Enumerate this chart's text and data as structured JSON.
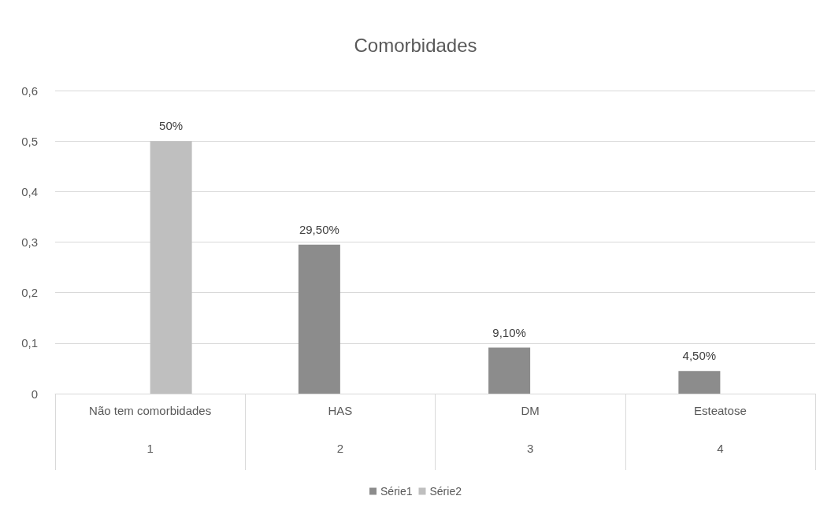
{
  "chart_data": {
    "type": "bar",
    "title": "Comorbidades",
    "categories": [
      "Não tem comorbidades",
      "HAS",
      "DM",
      "Esteatose"
    ],
    "series": [
      {
        "name": "Série1",
        "color": "#8c8c8c",
        "values": [
          null,
          0.295,
          0.091,
          0.045
        ],
        "value_labels": [
          null,
          "29,50%",
          "9,10%",
          "4,50%"
        ]
      },
      {
        "name": "Série2",
        "color": "#bfbfbf",
        "values": [
          0.5,
          null,
          null,
          null
        ],
        "value_labels": [
          "50%",
          null,
          null,
          null
        ]
      }
    ],
    "annotations": [
      "1",
      "2",
      "3",
      "4"
    ],
    "ylim": [
      0,
      0.6
    ],
    "yticks": [
      0,
      {
        "value": 0.1,
        "label": "0,1"
      },
      {
        "value": 0.2,
        "label": "0,2"
      },
      {
        "value": 0.3,
        "label": "0,3"
      },
      {
        "value": 0.4,
        "label": "0,4"
      },
      {
        "value": 0.5,
        "label": "0,5"
      },
      {
        "value": 0.6,
        "label": "0,6"
      }
    ],
    "grid": "y",
    "legend": "bottom"
  }
}
